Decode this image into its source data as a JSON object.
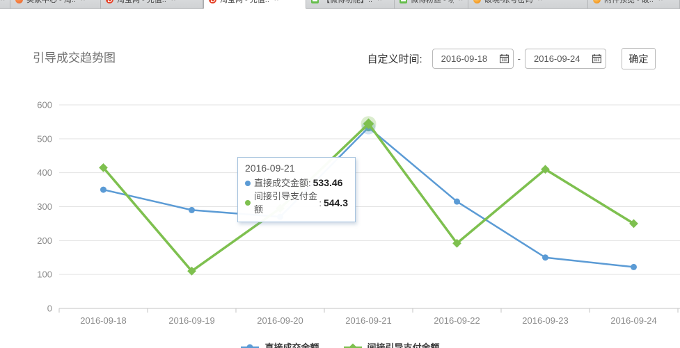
{
  "tabs": [
    {
      "label": "",
      "icon": null,
      "close": "×",
      "active": false,
      "partial": true
    },
    {
      "label": "卖家中心 - 淘..",
      "icon": "swirl-orange",
      "close": "×",
      "active": false
    },
    {
      "label": "淘宝网 - 充值..",
      "icon": "taobao-red",
      "close": "×",
      "active": false
    },
    {
      "label": "淘宝网 - 充值..",
      "icon": "taobao-red",
      "close": "×",
      "active": true
    },
    {
      "label": "【微博功能】..",
      "icon": "badge-green",
      "close": "×",
      "active": false
    },
    {
      "label": "微博粉丝 - 功..",
      "icon": "badge-green",
      "close": "×",
      "active": false
    },
    {
      "label": "破晓-账号密码",
      "icon": "circle-orange",
      "close": "×",
      "active": false
    },
    {
      "label": "附件预览 - 破..",
      "icon": "circle-orange",
      "close": "×",
      "active": false
    }
  ],
  "header": {
    "title": "引导成交趋势图",
    "date_label": "自定义时间:",
    "date_start": "2016-09-18",
    "date_end": "2016-09-24",
    "separator": "-",
    "confirm_label": "确定"
  },
  "chart_data": {
    "type": "line",
    "x": [
      "2016-09-18",
      "2016-09-19",
      "2016-09-20",
      "2016-09-21",
      "2016-09-22",
      "2016-09-23",
      "2016-09-24"
    ],
    "series": [
      {
        "name": "直接成交金额",
        "color": "#5b9bd5",
        "marker": "circle",
        "line_width": 2.5,
        "values": [
          350,
          290,
          270,
          533.46,
          315,
          150,
          122
        ]
      },
      {
        "name": "间接引导支付金额",
        "color": "#7ec04f",
        "marker": "diamond",
        "line_width": 3.5,
        "values": [
          415,
          110,
          295,
          544.3,
          192,
          410,
          250
        ]
      }
    ],
    "ylim": [
      0,
      600
    ],
    "yticks": [
      0,
      100,
      200,
      300,
      400,
      500,
      600
    ],
    "grid": true,
    "legend_position": "bottom",
    "highlight_index": 3
  },
  "tooltip": {
    "title": "2016-09-21",
    "rows": [
      {
        "label": "直接成交金额",
        "value": "533.46",
        "color": "#5b9bd5"
      },
      {
        "label": "间接引导支付金额",
        "value": "544.3",
        "color": "#7ec04f"
      }
    ]
  },
  "colors": {
    "grid_line": "#e3e3e3",
    "axis_line": "#c3c3c3",
    "tick_label": "#8b8b8b"
  }
}
